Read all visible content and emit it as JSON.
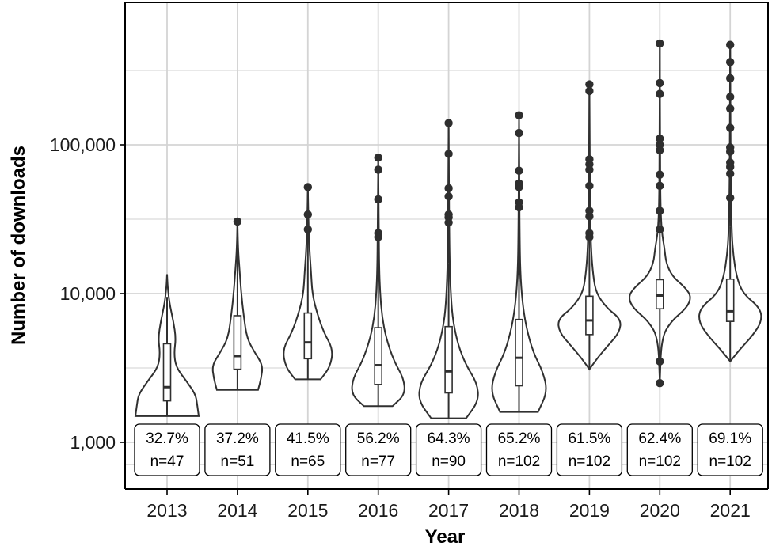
{
  "chart_data": {
    "type": "violin",
    "xlabel": "Year",
    "ylabel": "Number of downloads",
    "y_scale": "log10",
    "ylim": [
      500,
      720000
    ],
    "y_ticks": [
      1000,
      10000,
      100000
    ],
    "y_tick_labels": [
      "1,000",
      "10,000",
      "100,000"
    ],
    "categories": [
      "2013",
      "2014",
      "2015",
      "2016",
      "2017",
      "2018",
      "2019",
      "2020",
      "2021"
    ],
    "groups": [
      {
        "year": "2013",
        "pct": "32.7%",
        "n": "n=47",
        "min": 1500,
        "max": 13500,
        "q1": 1900,
        "median": 2350,
        "q3": 4600,
        "whisker_low": 1500,
        "whisker_high": 9500,
        "outliers": [],
        "density": [
          [
            1500,
            1.0
          ],
          [
            1800,
            0.95
          ],
          [
            2100,
            0.9
          ],
          [
            2600,
            0.6
          ],
          [
            3200,
            0.28
          ],
          [
            4000,
            0.22
          ],
          [
            5000,
            0.28
          ],
          [
            6500,
            0.2
          ],
          [
            8500,
            0.08
          ],
          [
            11000,
            0.02
          ],
          [
            13500,
            0.0
          ]
        ]
      },
      {
        "year": "2014",
        "pct": "37.2%",
        "n": "n=51",
        "min": 2250,
        "max": 30500,
        "q1": 3100,
        "median": 3800,
        "q3": 7100,
        "whisker_low": 2250,
        "whisker_high": 18000,
        "outliers": [
          30500
        ],
        "density": [
          [
            2250,
            0.65
          ],
          [
            2700,
            0.75
          ],
          [
            3300,
            0.8
          ],
          [
            4000,
            0.55
          ],
          [
            5000,
            0.3
          ],
          [
            7000,
            0.2
          ],
          [
            10000,
            0.12
          ],
          [
            15000,
            0.06
          ],
          [
            20000,
            0.02
          ],
          [
            30500,
            0.0
          ]
        ]
      },
      {
        "year": "2015",
        "pct": "41.5%",
        "n": "n=65",
        "min": 2650,
        "max": 52000,
        "q1": 3650,
        "median": 4700,
        "q3": 7400,
        "whisker_low": 2650,
        "whisker_high": 18000,
        "outliers": [
          27000,
          34000,
          52000
        ],
        "density": [
          [
            2650,
            0.4
          ],
          [
            3200,
            0.7
          ],
          [
            4200,
            0.8
          ],
          [
            5500,
            0.5
          ],
          [
            7500,
            0.28
          ],
          [
            10000,
            0.14
          ],
          [
            14000,
            0.1
          ],
          [
            20000,
            0.05
          ],
          [
            30000,
            0.02
          ],
          [
            52000,
            0.0
          ]
        ]
      },
      {
        "year": "2016",
        "pct": "56.2%",
        "n": "n=77",
        "min": 1750,
        "max": 82000,
        "q1": 2450,
        "median": 3300,
        "q3": 5900,
        "whisker_low": 1750,
        "whisker_high": 18000,
        "outliers": [
          24000,
          25500,
          43000,
          68000,
          82000
        ],
        "density": [
          [
            1750,
            0.45
          ],
          [
            2100,
            0.85
          ],
          [
            2700,
            0.8
          ],
          [
            3500,
            0.5
          ],
          [
            5000,
            0.25
          ],
          [
            7000,
            0.12
          ],
          [
            10000,
            0.06
          ],
          [
            15000,
            0.03
          ],
          [
            25000,
            0.02
          ],
          [
            82000,
            0.0
          ]
        ]
      },
      {
        "year": "2017",
        "pct": "64.3%",
        "n": "n=90",
        "min": 1450,
        "max": 140000,
        "q1": 2150,
        "median": 3000,
        "q3": 6000,
        "whisker_low": 1450,
        "whisker_high": 16000,
        "outliers": [
          30000,
          32500,
          34000,
          45000,
          51000,
          87000,
          140000
        ],
        "density": [
          [
            1450,
            0.55
          ],
          [
            1900,
            0.95
          ],
          [
            2500,
            0.9
          ],
          [
            3300,
            0.55
          ],
          [
            4500,
            0.3
          ],
          [
            6500,
            0.14
          ],
          [
            9000,
            0.08
          ],
          [
            14000,
            0.04
          ],
          [
            25000,
            0.02
          ],
          [
            60000,
            0.01
          ],
          [
            140000,
            0.0
          ]
        ]
      },
      {
        "year": "2018",
        "pct": "65.2%",
        "n": "n=102",
        "min": 1600,
        "max": 158000,
        "q1": 2400,
        "median": 3700,
        "q3": 6700,
        "whisker_low": 1600,
        "whisker_high": 30000,
        "outliers": [
          38000,
          41000,
          52000,
          55000,
          67000,
          120000,
          158000
        ],
        "density": [
          [
            1600,
            0.6
          ],
          [
            2200,
            0.9
          ],
          [
            3000,
            0.75
          ],
          [
            4000,
            0.45
          ],
          [
            6000,
            0.22
          ],
          [
            9000,
            0.1
          ],
          [
            14000,
            0.04
          ],
          [
            25000,
            0.02
          ],
          [
            60000,
            0.01
          ],
          [
            158000,
            0.0
          ]
        ]
      },
      {
        "year": "2019",
        "pct": "61.5%",
        "n": "n=102",
        "min": 3100,
        "max": 255000,
        "q1": 5300,
        "median": 6600,
        "q3": 9600,
        "whisker_low": 3100,
        "whisker_high": 18000,
        "outliers": [
          24000,
          25500,
          33000,
          36000,
          53000,
          68000,
          74000,
          80000,
          230000,
          255000
        ],
        "density": [
          [
            3100,
            0.0
          ],
          [
            3800,
            0.3
          ],
          [
            4500,
            0.6
          ],
          [
            5500,
            0.95
          ],
          [
            6700,
            1.0
          ],
          [
            8000,
            0.55
          ],
          [
            10000,
            0.22
          ],
          [
            13000,
            0.12
          ],
          [
            20000,
            0.05
          ],
          [
            40000,
            0.02
          ],
          [
            100000,
            0.01
          ],
          [
            255000,
            0.0
          ]
        ]
      },
      {
        "year": "2020",
        "pct": "62.4%",
        "n": "n=102",
        "min": 2500,
        "max": 480000,
        "q1": 7900,
        "median": 9700,
        "q3": 12400,
        "whisker_low": 5000,
        "whisker_high": 24000,
        "outliers": [
          2500,
          3500,
          27000,
          36000,
          53000,
          63000,
          92000,
          100000,
          110000,
          220000,
          260000,
          480000
        ],
        "density": [
          [
            2500,
            0.0
          ],
          [
            5000,
            0.05
          ],
          [
            6500,
            0.35
          ],
          [
            8000,
            0.85
          ],
          [
            9500,
            1.0
          ],
          [
            11000,
            0.8
          ],
          [
            13000,
            0.4
          ],
          [
            16000,
            0.2
          ],
          [
            20000,
            0.15
          ],
          [
            26000,
            0.06
          ],
          [
            40000,
            0.02
          ],
          [
            100000,
            0.01
          ],
          [
            480000,
            0.0
          ]
        ]
      },
      {
        "year": "2021",
        "pct": "69.1%",
        "n": "n=102",
        "min": 3500,
        "max": 470000,
        "q1": 6500,
        "median": 7600,
        "q3": 12500,
        "whisker_low": 3500,
        "whisker_high": 28000,
        "outliers": [
          44000,
          64000,
          71000,
          76000,
          90000,
          96000,
          130000,
          175000,
          210000,
          280000,
          360000,
          470000
        ],
        "density": [
          [
            3500,
            0.0
          ],
          [
            4200,
            0.3
          ],
          [
            5200,
            0.7
          ],
          [
            6500,
            1.0
          ],
          [
            8000,
            0.95
          ],
          [
            10000,
            0.4
          ],
          [
            13000,
            0.2
          ],
          [
            18000,
            0.1
          ],
          [
            25000,
            0.05
          ],
          [
            50000,
            0.02
          ],
          [
            150000,
            0.01
          ],
          [
            470000,
            0.0
          ]
        ]
      }
    ]
  }
}
